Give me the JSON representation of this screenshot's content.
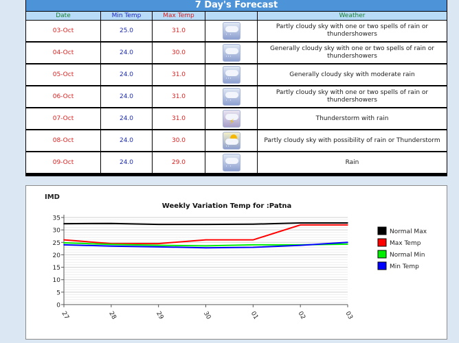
{
  "forecast": {
    "title": "7 Day's Forecast",
    "headers": {
      "date": "Date",
      "min": "Min Temp",
      "max": "Max Temp",
      "icon": "",
      "weather": "Weather"
    },
    "rows": [
      {
        "date": "03-Oct",
        "min": "25.0",
        "max": "31.0",
        "icon": "rain-cloud-icon",
        "weather": "Partly cloudy sky with one or two spells of rain or thundershowers"
      },
      {
        "date": "04-Oct",
        "min": "24.0",
        "max": "30.0",
        "icon": "heavy-rain-cloud-icon",
        "weather": "Generally cloudy sky with one or two spells of rain or thundershowers"
      },
      {
        "date": "05-Oct",
        "min": "24.0",
        "max": "31.0",
        "icon": "heavy-rain-cloud-icon",
        "weather": "Generally cloudy sky with moderate rain"
      },
      {
        "date": "06-Oct",
        "min": "24.0",
        "max": "31.0",
        "icon": "rain-cloud-icon",
        "weather": "Partly cloudy sky with one or two spells of rain or thundershowers"
      },
      {
        "date": "07-Oct",
        "min": "24.0",
        "max": "31.0",
        "icon": "thunderstorm-icon",
        "weather": "Thunderstorm with rain"
      },
      {
        "date": "08-Oct",
        "min": "24.0",
        "max": "30.0",
        "icon": "sun-cloud-rain-icon",
        "weather": "Partly cloudy sky with possibility of rain or Thunderstorm"
      },
      {
        "date": "09-Oct",
        "min": "24.0",
        "max": "29.0",
        "icon": "rain-cloud-icon",
        "weather": "Rain"
      }
    ]
  },
  "chart_panel": {
    "brand": "IMD"
  },
  "chart_data": {
    "type": "line",
    "title": "Weekly Variation Temp for :Patna",
    "xlabel": "",
    "ylabel": "",
    "categories": [
      "27",
      "28",
      "29",
      "30",
      "01",
      "02",
      "03"
    ],
    "ylim": [
      0,
      35
    ],
    "yticks": [
      0,
      5,
      10,
      15,
      20,
      25,
      30,
      35
    ],
    "grid": true,
    "legend_position": "right",
    "series": [
      {
        "name": "Normal Max",
        "color": "#000000",
        "values": [
          32.5,
          32.6,
          32.2,
          32.2,
          32.3,
          32.8,
          32.8
        ]
      },
      {
        "name": "Max Temp",
        "color": "#ff0000",
        "values": [
          26.0,
          24.5,
          24.5,
          26.0,
          26.0,
          32.0,
          32.0
        ]
      },
      {
        "name": "Normal Min",
        "color": "#00ee00",
        "values": [
          24.8,
          24.2,
          23.8,
          23.6,
          24.0,
          24.0,
          24.3
        ]
      },
      {
        "name": "Min Temp",
        "color": "#0000ff",
        "values": [
          24.0,
          23.5,
          23.2,
          22.8,
          23.0,
          23.8,
          25.0
        ]
      }
    ]
  }
}
